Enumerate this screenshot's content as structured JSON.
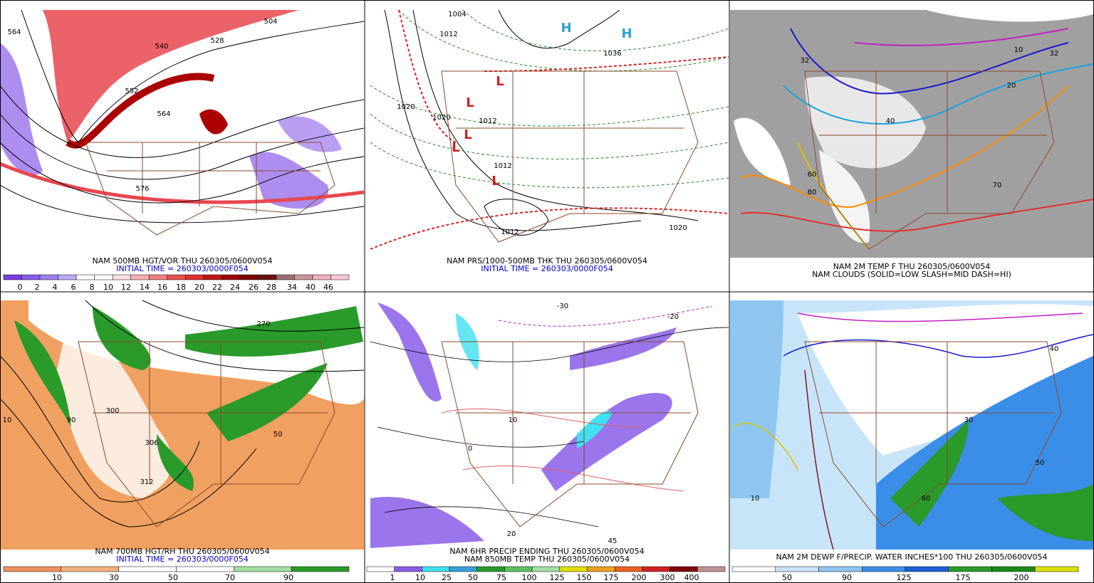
{
  "panels": [
    {
      "captions": [
        "NAM 500MB HGT/VOR THU 260305/0600V054",
        "INITIAL TIME = 260303/0000F054"
      ],
      "colorbar_labels": [
        "0",
        "2",
        "4",
        "6",
        "8",
        "10",
        "12",
        "14",
        "16",
        "18",
        "20",
        "22",
        "24",
        "26",
        "28",
        "34",
        "40",
        "46"
      ],
      "map_labels": [
        "564",
        "528",
        "504",
        "540",
        "552",
        "564",
        "576"
      ]
    },
    {
      "captions": [
        "NAM PRS/1000-500MB THK THU 260305/0600V054",
        "INITIAL TIME = 260303/0000F054"
      ],
      "colorbar_labels": [],
      "map_labels": [
        "1004",
        "1012",
        "1020",
        "1020",
        "1012",
        "1012",
        "1012",
        "1036",
        "1020",
        "H",
        "H",
        "L",
        "L",
        "L",
        "L",
        "L"
      ]
    },
    {
      "captions": [
        "NAM 2M TEMP F THU 260305/0600V054",
        "NAM CLOUDS (SOLID=LOW SLASH=MID DASH=HI)"
      ],
      "colorbar_labels": [],
      "map_labels": [
        "32",
        "40",
        "60",
        "70",
        "80",
        "10",
        "20",
        "32"
      ]
    },
    {
      "captions": [
        "NAM 700MB HGT/RH THU 260305/0600V054",
        "INITIAL TIME = 260303/0000F054"
      ],
      "colorbar_labels": [
        "10",
        "30",
        "50",
        "70",
        "90"
      ],
      "map_labels": [
        "270",
        "300",
        "306",
        "312",
        "50",
        "10",
        "90"
      ]
    },
    {
      "captions": [
        "NAM 6HR PRECIP ENDING THU 260305/0600V054",
        "NAM 850MB TEMP THU 260305/0600V054"
      ],
      "colorbar_labels": [
        "1",
        "10",
        "25",
        "50",
        "75",
        "100",
        "125",
        "150",
        "175",
        "200",
        "300",
        "400"
      ],
      "map_labels": [
        "-30",
        "-20",
        "0",
        "10",
        "20",
        "45"
      ]
    },
    {
      "captions": [
        "NAM 2M DEWP F/PRECIP. WATER INCHES*100 THU 260305/0600V054"
      ],
      "colorbar_labels": [
        "50",
        "90",
        "125",
        "175",
        "200"
      ],
      "map_labels": [
        "30",
        "40",
        "50",
        "60",
        "10"
      ]
    }
  ]
}
